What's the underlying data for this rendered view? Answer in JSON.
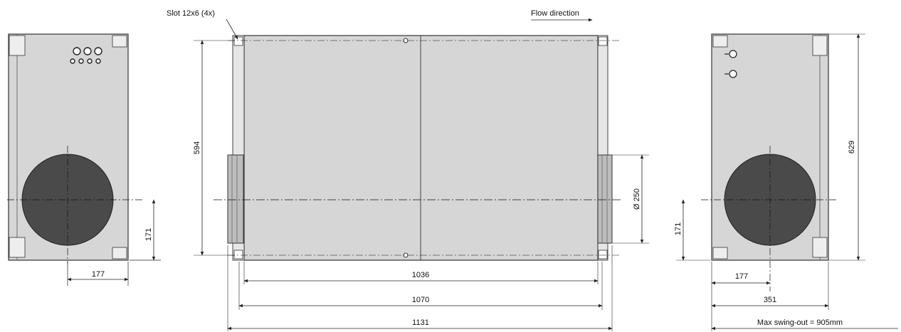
{
  "labels": {
    "slot": "Slot 12x6 (4x)",
    "flow": "Flow direction"
  },
  "dimensions": {
    "height_594": "594",
    "height_629": "629",
    "duct_diameter": "Ø 250",
    "left_offset_171": "171",
    "right_offset_171": "171",
    "left_width_177": "177",
    "right_width_177": "177",
    "width_351": "351",
    "width_1036": "1036",
    "width_1070": "1070",
    "width_1131": "1131",
    "swing_out": "Max swing-out = 905mm"
  },
  "colors": {
    "body_fill": "#d6d6d6",
    "outline": "#333333",
    "duct_fill": "#4a4a4a",
    "dim_line": "#222222"
  }
}
